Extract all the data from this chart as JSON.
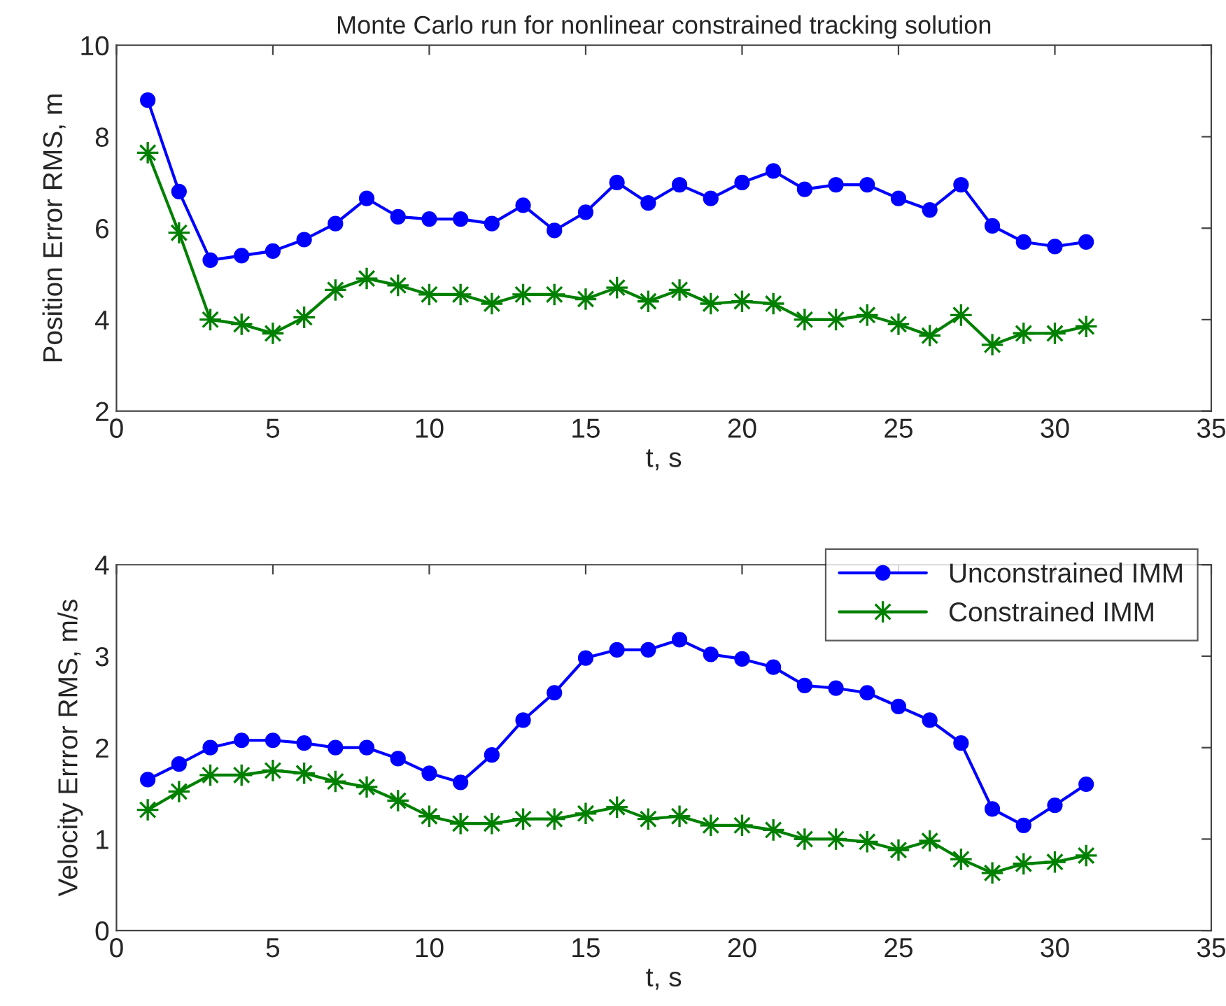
{
  "chart_data": [
    {
      "type": "line",
      "title": "Monte Carlo run for nonlinear constrained tracking solution",
      "xlabel": "t, s",
      "ylabel": "Position Error RMS, m",
      "xlim": [
        0,
        35
      ],
      "xticks": [
        0,
        5,
        10,
        15,
        20,
        25,
        30,
        35
      ],
      "ylim": [
        2,
        10
      ],
      "yticks": [
        2,
        4,
        6,
        8,
        10
      ],
      "grid": false,
      "legend": false,
      "x": [
        1,
        2,
        3,
        4,
        5,
        6,
        7,
        8,
        9,
        10,
        11,
        12,
        13,
        14,
        15,
        16,
        17,
        18,
        19,
        20,
        21,
        22,
        23,
        24,
        25,
        26,
        27,
        28,
        29,
        30,
        31
      ],
      "series": [
        {
          "color": "#0000ff",
          "marker": "circle",
          "values": [
            8.8,
            6.8,
            5.3,
            5.4,
            5.5,
            5.75,
            6.1,
            6.65,
            6.25,
            6.2,
            6.2,
            6.1,
            6.5,
            5.95,
            6.35,
            7.0,
            6.55,
            6.95,
            6.65,
            7.0,
            7.25,
            6.85,
            6.95,
            6.95,
            6.65,
            6.4,
            6.95,
            6.05,
            5.7,
            5.6,
            5.7
          ]
        },
        {
          "color": "#008000",
          "marker": "star",
          "values": [
            7.65,
            5.9,
            4.0,
            3.9,
            3.7,
            4.05,
            4.65,
            4.9,
            4.75,
            4.55,
            4.55,
            4.35,
            4.55,
            4.55,
            4.45,
            4.7,
            4.4,
            4.65,
            4.35,
            4.4,
            4.35,
            4.0,
            4.0,
            4.1,
            3.9,
            3.65,
            4.1,
            3.45,
            3.7,
            3.7,
            3.85
          ]
        }
      ]
    },
    {
      "type": "line",
      "xlabel": "t, s",
      "ylabel": "Velocity Errror RMS, m/s",
      "xlim": [
        0,
        35
      ],
      "xticks": [
        0,
        5,
        10,
        15,
        20,
        25,
        30,
        35
      ],
      "ylim": [
        0,
        4
      ],
      "yticks": [
        0,
        1,
        2,
        3,
        4
      ],
      "grid": false,
      "legend": "top right",
      "x": [
        1,
        2,
        3,
        4,
        5,
        6,
        7,
        8,
        9,
        10,
        11,
        12,
        13,
        14,
        15,
        16,
        17,
        18,
        19,
        20,
        21,
        22,
        23,
        24,
        25,
        26,
        27,
        28,
        29,
        30,
        31
      ],
      "series": [
        {
          "name": "Unconstrained IMM",
          "color": "#0000ff",
          "marker": "circle",
          "values": [
            1.65,
            1.82,
            2.0,
            2.08,
            2.08,
            2.05,
            2.0,
            2.0,
            1.88,
            1.72,
            1.62,
            1.92,
            2.3,
            2.6,
            2.98,
            3.07,
            3.07,
            3.18,
            3.02,
            2.97,
            2.88,
            2.68,
            2.65,
            2.6,
            2.45,
            2.3,
            2.05,
            1.33,
            1.15,
            1.37,
            1.6
          ]
        },
        {
          "name": "Constrained IMM",
          "color": "#008000",
          "marker": "star",
          "values": [
            1.32,
            1.52,
            1.7,
            1.7,
            1.75,
            1.72,
            1.63,
            1.57,
            1.42,
            1.25,
            1.17,
            1.17,
            1.22,
            1.22,
            1.28,
            1.35,
            1.22,
            1.25,
            1.15,
            1.15,
            1.1,
            1.0,
            1.0,
            0.97,
            0.88,
            0.98,
            0.78,
            0.63,
            0.73,
            0.75,
            0.82
          ]
        }
      ]
    }
  ]
}
